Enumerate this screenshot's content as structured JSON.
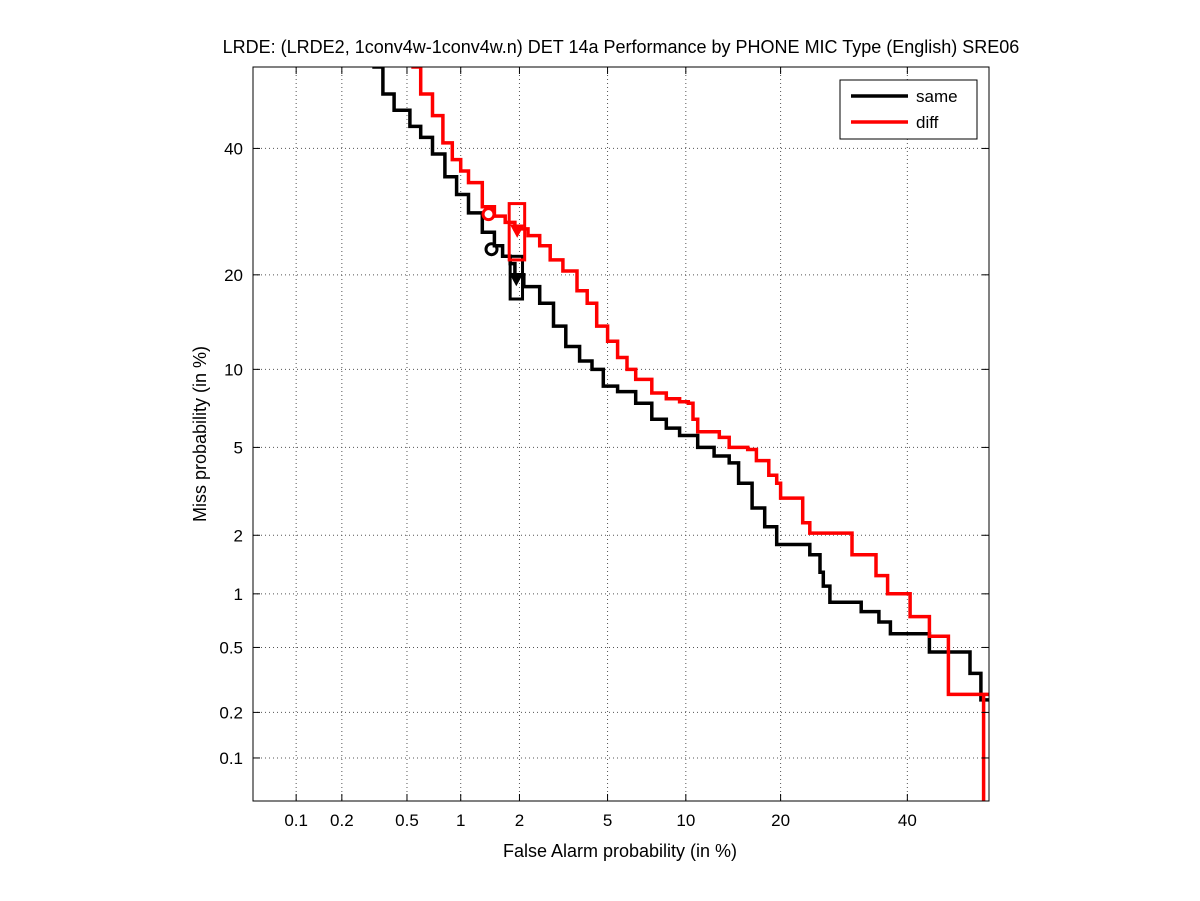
{
  "chart_data": {
    "type": "line",
    "title": "LRDE: (LRDE2, 1conv4w-1conv4w.n) DET 14a Performance by PHONE MIC Type (English) SRE06",
    "xlabel": "False Alarm probability (in %)",
    "ylabel": "Miss probability (in %)",
    "x_scale": "normal-deviate",
    "y_scale": "normal-deviate",
    "xlim": [
      0.05,
      55
    ],
    "ylim": [
      0.05,
      55
    ],
    "grid": true,
    "legend_position": "top-right",
    "x_ticks": [
      {
        "value": 0.1,
        "label": "0.1"
      },
      {
        "value": 0.2,
        "label": "0.2"
      },
      {
        "value": 0.5,
        "label": "0.5"
      },
      {
        "value": 1,
        "label": "1"
      },
      {
        "value": 2,
        "label": "2"
      },
      {
        "value": 5,
        "label": "5"
      },
      {
        "value": 10,
        "label": "10"
      },
      {
        "value": 20,
        "label": "20"
      },
      {
        "value": 40,
        "label": "40"
      }
    ],
    "y_ticks": [
      {
        "value": 0.1,
        "label": "0.1"
      },
      {
        "value": 0.2,
        "label": "0.2"
      },
      {
        "value": 0.5,
        "label": "0.5"
      },
      {
        "value": 1,
        "label": "1"
      },
      {
        "value": 2,
        "label": "2"
      },
      {
        "value": 5,
        "label": "5"
      },
      {
        "value": 10,
        "label": "10"
      },
      {
        "value": 20,
        "label": "20"
      },
      {
        "value": 40,
        "label": "40"
      }
    ],
    "series": [
      {
        "name": "same",
        "color": "#000000",
        "points": [
          [
            0.31,
            55
          ],
          [
            0.36,
            50
          ],
          [
            0.42,
            47
          ],
          [
            0.52,
            44
          ],
          [
            0.6,
            42
          ],
          [
            0.7,
            39
          ],
          [
            0.82,
            35
          ],
          [
            0.95,
            32
          ],
          [
            1.1,
            29
          ],
          [
            1.3,
            26
          ],
          [
            1.5,
            24
          ],
          [
            1.65,
            22.5
          ],
          [
            1.8,
            21.5
          ],
          [
            1.9,
            20
          ],
          [
            2.1,
            18.5
          ],
          [
            2.5,
            16.5
          ],
          [
            2.9,
            14
          ],
          [
            3.3,
            12
          ],
          [
            3.8,
            10.7
          ],
          [
            4.3,
            10
          ],
          [
            4.8,
            8.7
          ],
          [
            5.5,
            8.3
          ],
          [
            6.5,
            7.5
          ],
          [
            7.5,
            6.5
          ],
          [
            8.5,
            6.0
          ],
          [
            9.5,
            5.6
          ],
          [
            11,
            5.0
          ],
          [
            12.5,
            4.6
          ],
          [
            14,
            4.3
          ],
          [
            15,
            3.5
          ],
          [
            16.5,
            2.7
          ],
          [
            18,
            2.2
          ],
          [
            19.5,
            1.8
          ],
          [
            23,
            1.8
          ],
          [
            24,
            1.6
          ],
          [
            25.5,
            1.3
          ],
          [
            26,
            1.1
          ],
          [
            27,
            0.9
          ],
          [
            31,
            0.9
          ],
          [
            32,
            0.8
          ],
          [
            35,
            0.7
          ],
          [
            37,
            0.6
          ],
          [
            43,
            0.6
          ],
          [
            44,
            0.47
          ],
          [
            51,
            0.47
          ],
          [
            51.5,
            0.35
          ],
          [
            53,
            0.35
          ],
          [
            53.5,
            0.24
          ],
          [
            55,
            0.24
          ]
        ],
        "actual_dcf": {
          "fa": 1.45,
          "miss": 23.5
        },
        "min_dcf": {
          "fa": 1.93,
          "miss": 19.5
        },
        "confidence_box": {
          "fa": [
            1.8,
            2.07
          ],
          "miss": [
            17.0,
            22.5
          ]
        }
      },
      {
        "name": "diff",
        "color": "#ff0000",
        "points": [
          [
            0.53,
            55
          ],
          [
            0.6,
            50
          ],
          [
            0.7,
            46
          ],
          [
            0.8,
            41
          ],
          [
            0.9,
            38
          ],
          [
            1.0,
            36
          ],
          [
            1.1,
            34
          ],
          [
            1.3,
            30
          ],
          [
            1.5,
            28.5
          ],
          [
            1.7,
            27.5
          ],
          [
            1.9,
            26.5
          ],
          [
            2.2,
            25.5
          ],
          [
            2.5,
            24
          ],
          [
            2.8,
            22
          ],
          [
            3.2,
            20.5
          ],
          [
            3.7,
            18
          ],
          [
            4.1,
            16.5
          ],
          [
            4.5,
            14
          ],
          [
            5.0,
            12.5
          ],
          [
            5.5,
            11
          ],
          [
            6.0,
            10
          ],
          [
            6.5,
            9.2
          ],
          [
            7.5,
            8.2
          ],
          [
            8.5,
            7.8
          ],
          [
            9.5,
            7.6
          ],
          [
            10.2,
            7.5
          ],
          [
            10.6,
            6.5
          ],
          [
            11,
            5.8
          ],
          [
            13,
            5.5
          ],
          [
            14,
            5.0
          ],
          [
            16,
            4.9
          ],
          [
            17,
            4.4
          ],
          [
            18.5,
            3.8
          ],
          [
            19.5,
            3.5
          ],
          [
            20,
            3.0
          ],
          [
            22.5,
            3.0
          ],
          [
            23,
            2.3
          ],
          [
            24,
            2.05
          ],
          [
            30,
            2.05
          ],
          [
            30.5,
            1.6
          ],
          [
            34,
            1.6
          ],
          [
            34.5,
            1.25
          ],
          [
            36,
            1.25
          ],
          [
            36.5,
            1.0
          ],
          [
            40,
            1.0
          ],
          [
            40.5,
            0.75
          ],
          [
            43.5,
            0.75
          ],
          [
            44,
            0.58
          ],
          [
            47,
            0.58
          ],
          [
            47.5,
            0.26
          ],
          [
            55,
            0.26
          ],
          [
            54,
            0.26
          ],
          [
            54,
            0.05
          ]
        ],
        "actual_dcf": {
          "fa": 1.4,
          "miss": 28.8
        },
        "min_dcf": {
          "fa": 1.95,
          "miss": 26.3
        },
        "confidence_box": {
          "fa": [
            1.78,
            2.12
          ],
          "miss": [
            22.0,
            30.5
          ]
        }
      }
    ]
  }
}
